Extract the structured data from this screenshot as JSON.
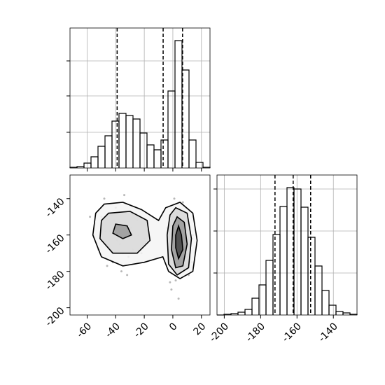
{
  "chart_data": [
    {
      "type": "histogram",
      "bins": [
        -72,
        -67.1,
        -62.2,
        -57.3,
        -52.4,
        -47.5,
        -42.6,
        -37.7,
        -32.8,
        -27.9,
        -23,
        -18.1,
        -13.2,
        -8.3,
        -3.4,
        1.5,
        6.4,
        11.3,
        16.2,
        21.1,
        26
      ],
      "values": [
        1,
        2,
        7,
        16,
        31,
        46,
        67,
        78,
        75,
        70,
        50,
        33,
        26,
        40,
        110,
        182,
        140,
        40,
        8,
        1
      ],
      "quantiles": [
        -39,
        -6.8,
        6.8
      ],
      "xlim": [
        -72,
        26
      ],
      "xticks": [
        -60,
        -40,
        -20,
        0,
        20
      ],
      "ylim": [
        0,
        200
      ],
      "yticks": [
        51,
        103,
        153
      ],
      "xtick_labels": false,
      "ytick_labels": false,
      "grid": true,
      "color": "#000000"
    },
    {
      "type": "scatter",
      "x": [
        -50,
        -45,
        -40,
        -35,
        -30,
        -25,
        -55,
        -42,
        -38,
        -33,
        -28,
        -20,
        -48,
        -36,
        -44,
        -31,
        -58,
        -26,
        -39,
        -46,
        -52,
        -34,
        -22,
        -41,
        -29,
        -37,
        -47,
        -24,
        -43,
        -32,
        0,
        3,
        6,
        9,
        12,
        -3,
        2,
        5,
        8,
        14,
        1,
        4,
        7,
        -1,
        10,
        3,
        6,
        11,
        -4,
        2,
        5,
        8,
        0,
        13,
        4,
        7,
        1,
        9,
        -2,
        6
      ],
      "y": [
        -150,
        -165,
        -145,
        -170,
        -158,
        -152,
        -160,
        -175,
        -155,
        -148,
        -168,
        -162,
        -140,
        -180,
        -158,
        -172,
        -150,
        -145,
        -163,
        -177,
        -168,
        -138,
        -170,
        -152,
        -156,
        -165,
        -158,
        -160,
        -149,
        -182,
        -150,
        -160,
        -170,
        -145,
        -165,
        -175,
        -185,
        -155,
        -180,
        -160,
        -140,
        -168,
        -158,
        -190,
        -172,
        -148,
        -162,
        -182,
        -156,
        -178,
        -166,
        -150,
        -164,
        -175,
        -195,
        -142,
        -170,
        -158,
        -186,
        -163
      ],
      "contours": [
        {
          "x": [
            -48,
            -35,
            -22,
            -10,
            -5,
            5,
            14,
            17,
            14,
            5,
            -3,
            -7,
            -20,
            -35,
            -50,
            -56,
            -54
          ],
          "y": [
            -143,
            -142,
            -146,
            -152,
            -145,
            -142,
            -148,
            -163,
            -180,
            -184,
            -180,
            -172,
            -175,
            -177,
            -172,
            -160,
            -148
          ]
        },
        {
          "x": [
            -45,
            -30,
            -18,
            -16,
            -25,
            -42,
            -51,
            -50
          ],
          "y": [
            -148,
            -147,
            -152,
            -163,
            -170,
            -170,
            -162,
            -152
          ]
        },
        {
          "x": [
            2,
            10,
            13,
            11,
            3,
            -3,
            -4,
            -2
          ],
          "y": [
            -145,
            -148,
            -162,
            -178,
            -182,
            -176,
            -160,
            -149
          ]
        },
        {
          "x": [
            -40,
            -32,
            -29,
            -35,
            -42
          ],
          "y": [
            -154,
            -155,
            -160,
            -162,
            -159
          ]
        },
        {
          "x": [
            3,
            8,
            10,
            7,
            2,
            -1,
            0
          ],
          "y": [
            -150,
            -153,
            -165,
            -177,
            -178,
            -168,
            -155
          ]
        },
        {
          "x": [
            4,
            6,
            7,
            4,
            2,
            2
          ],
          "y": [
            -155,
            -160,
            -168,
            -173,
            -167,
            -160
          ]
        }
      ],
      "xlim": [
        -72,
        26
      ],
      "xticks": [
        -60,
        -40,
        -20,
        0,
        20
      ],
      "ylim": [
        -204,
        -127
      ],
      "yticks": [
        -200,
        -180,
        -160,
        -140
      ],
      "xtick_labels": true,
      "ytick_labels": true,
      "grid": false,
      "color": "#000000"
    },
    {
      "type": "histogram",
      "bins": [
        -204,
        -200.15,
        -196.3,
        -192.45,
        -188.6,
        -184.75,
        -180.9,
        -177.05,
        -173.2,
        -169.35,
        -165.5,
        -161.65,
        -157.8,
        -153.95,
        -150.1,
        -146.25,
        -142.4,
        -138.55,
        -134.7,
        -130.85,
        -127
      ],
      "values": [
        0,
        1,
        2,
        4,
        8,
        24,
        43,
        78,
        115,
        155,
        182,
        180,
        154,
        111,
        70,
        35,
        14,
        5,
        3,
        1
      ],
      "quantiles": [
        -172.1,
        -162.1,
        -152.5
      ],
      "xlim": [
        -204,
        -127
      ],
      "xticks": [
        -200,
        -180,
        -160,
        -140
      ],
      "ylim": [
        0,
        200
      ],
      "yticks": [
        60,
        120,
        180
      ],
      "xtick_labels": true,
      "ytick_labels": false,
      "grid": true,
      "color": "#000000"
    }
  ]
}
